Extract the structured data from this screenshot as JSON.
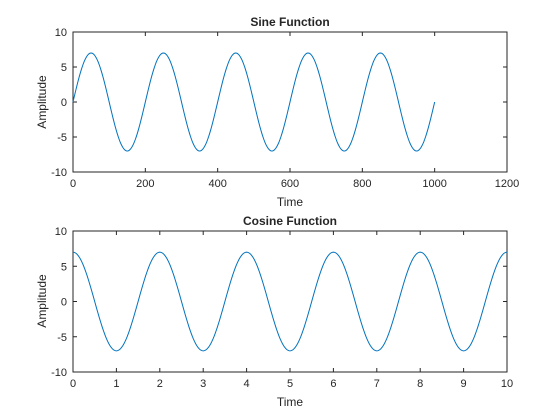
{
  "chart_data": [
    {
      "type": "line",
      "title": "Sine Function",
      "xlabel": "Time",
      "ylabel": "Amplitude",
      "xlim": [
        0,
        1200
      ],
      "ylim": [
        -10,
        10
      ],
      "xticks": [
        0,
        200,
        400,
        600,
        800,
        1000,
        1200
      ],
      "yticks": [
        -10,
        -5,
        0,
        5,
        10
      ],
      "grid": false,
      "color": "#0072bd",
      "series": [
        {
          "function": "7*sin(2*pi*x/200)",
          "amplitude": 7,
          "period": 200,
          "x_range": [
            0,
            1000
          ],
          "x": [
            0,
            50,
            100,
            150,
            200,
            250,
            300,
            350,
            400,
            450,
            500,
            550,
            600,
            650,
            700,
            750,
            800,
            850,
            900,
            950,
            1000
          ],
          "y": [
            0,
            7,
            0,
            -7,
            0,
            7,
            0,
            -7,
            0,
            7,
            0,
            -7,
            0,
            7,
            0,
            -7,
            0,
            7,
            0,
            -7,
            0
          ]
        }
      ]
    },
    {
      "type": "line",
      "title": "Cosine Function",
      "xlabel": "Time",
      "ylabel": "Amplitude",
      "xlim": [
        0,
        10
      ],
      "ylim": [
        -10,
        10
      ],
      "xticks": [
        0,
        1,
        2,
        3,
        4,
        5,
        6,
        7,
        8,
        9,
        10
      ],
      "yticks": [
        -10,
        -5,
        0,
        5,
        10
      ],
      "grid": false,
      "color": "#0072bd",
      "series": [
        {
          "function": "7*cos(pi*x)",
          "amplitude": 7,
          "period": 2,
          "x_range": [
            0,
            10
          ],
          "x": [
            0,
            1,
            2,
            3,
            4,
            5,
            6,
            7,
            8,
            9,
            10
          ],
          "y": [
            7,
            -7,
            7,
            -7,
            7,
            -7,
            7,
            -7,
            7,
            -7,
            7
          ]
        }
      ]
    }
  ]
}
